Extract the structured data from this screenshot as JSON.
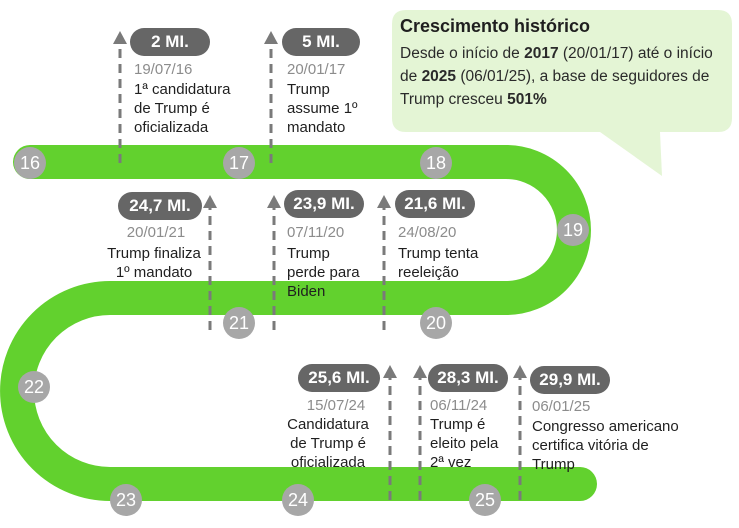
{
  "callout": {
    "title": "Crescimento histórico",
    "text_1": "Desde o início de ",
    "bold_1": "2017",
    "text_2": " (20/01/17) até o início de ",
    "bold_2": "2025",
    "text_3": " (06/01/25), a base de seguidores de Trump cresceu ",
    "bold_3": "501%"
  },
  "years": [
    "16",
    "17",
    "18",
    "19",
    "20",
    "21",
    "22",
    "23",
    "24",
    "25"
  ],
  "events": [
    {
      "followers": "2 MI.",
      "date": "19/07/16",
      "description": "1ª candidatura\nde Trump é\noficializada"
    },
    {
      "followers": "5 MI.",
      "date": "20/01/17",
      "description": "Trump\nassume 1º\nmandato"
    },
    {
      "followers": "24,7 MI.",
      "date": "20/01/21",
      "description": "Trump finaliza\n1º mandato"
    },
    {
      "followers": "23,9 MI.",
      "date": "07/11/20",
      "description": "Trump\nperde para\nBiden"
    },
    {
      "followers": "21,6 MI.",
      "date": "24/08/20",
      "description": "Trump tenta\nreeleição"
    },
    {
      "followers": "25,6 MI.",
      "date": "15/07/24",
      "description": "Candidatura\nde Trump é\noficializada"
    },
    {
      "followers": "28,3 MI.",
      "date": "06/11/24",
      "description": "Trump é\neleito pela\n2ª vez"
    },
    {
      "followers": "29,9 MI.",
      "date": "06/01/25",
      "description": "Congresso americano\ncertifica vitória de\nTrump"
    }
  ],
  "colors": {
    "road": "#62d12e",
    "callout": "#e4f5d5",
    "badge": "#666666",
    "year_dot": "#a7a7a7",
    "arrow": "#7a7a7a"
  }
}
